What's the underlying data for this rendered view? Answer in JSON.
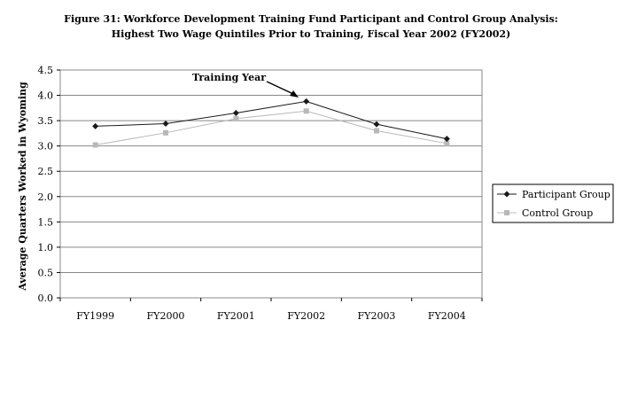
{
  "chart_data": {
    "type": "line",
    "title": "Figure 31: Workforce Development Training Fund Participant and Control Group Analysis:",
    "subtitle": "Highest Two Wage Quintiles Prior to Training, Fiscal Year 2002 (FY2002)",
    "xlabel": "",
    "ylabel": "Average Quarters Worked in Wyoming",
    "categories": [
      "FY1999",
      "FY2000",
      "FY2001",
      "FY2002",
      "FY2003",
      "FY2004"
    ],
    "ylim": [
      0,
      4.5
    ],
    "yticks": [
      "0.0",
      "0.5",
      "1.0",
      "1.5",
      "2.0",
      "2.5",
      "3.0",
      "3.5",
      "4.0",
      "4.5"
    ],
    "grid": true,
    "legend_position": "right",
    "series": [
      {
        "name": "Participant Group",
        "values": [
          3.39,
          3.44,
          3.65,
          3.88,
          3.43,
          3.14
        ],
        "color": "#1a1a1a",
        "marker": "diamond"
      },
      {
        "name": "Control Group",
        "values": [
          3.02,
          3.26,
          3.54,
          3.69,
          3.3,
          3.05
        ],
        "color": "#b8b8b8",
        "marker": "square"
      }
    ],
    "annotations": [
      {
        "text": "Training Year",
        "category": "FY2002"
      }
    ]
  }
}
